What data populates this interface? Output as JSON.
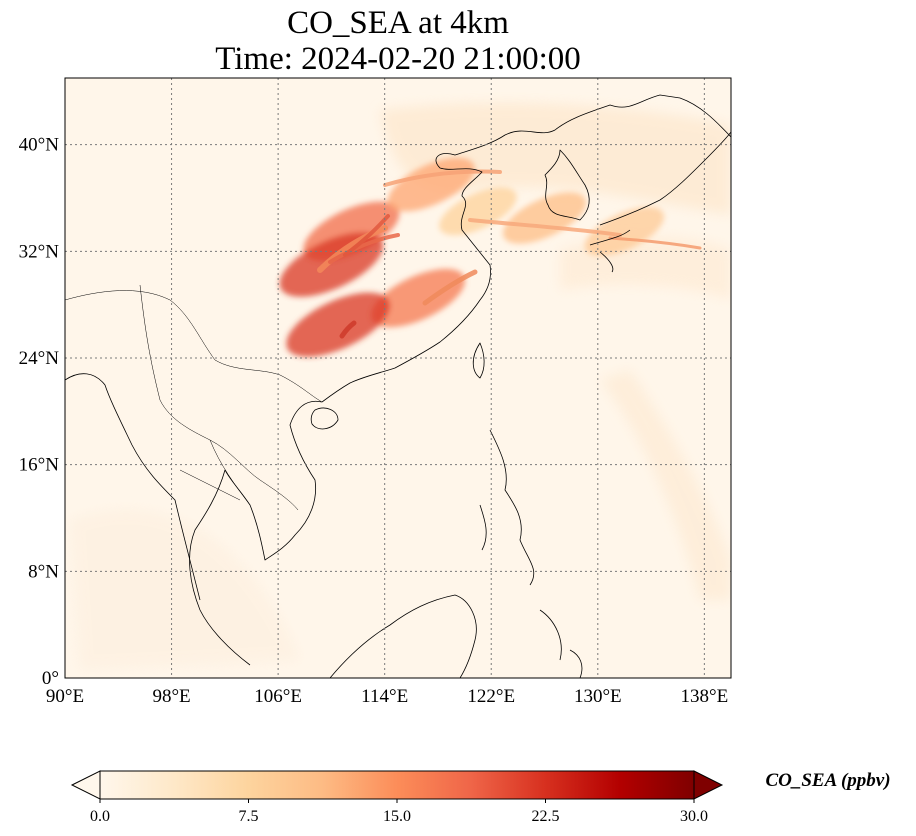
{
  "map": {
    "title_line1": "CO_SEA at 4km",
    "title_line2": "Time: 2024-02-20 21:00:00",
    "lon_range": [
      90,
      140
    ],
    "lat_range": [
      0,
      45
    ],
    "lon_ticks": [
      {
        "value": 90,
        "label": "90°E"
      },
      {
        "value": 98,
        "label": "98°E"
      },
      {
        "value": 106,
        "label": "106°E"
      },
      {
        "value": 114,
        "label": "114°E"
      },
      {
        "value": 122,
        "label": "122°E"
      },
      {
        "value": 130,
        "label": "130°E"
      },
      {
        "value": 138,
        "label": "138°E"
      }
    ],
    "lat_ticks": [
      {
        "value": 0,
        "label": "0°"
      },
      {
        "value": 8,
        "label": "8°N"
      },
      {
        "value": 16,
        "label": "16°N"
      },
      {
        "value": 24,
        "label": "24°N"
      },
      {
        "value": 32,
        "label": "32°N"
      },
      {
        "value": 40,
        "label": "40°N"
      }
    ],
    "gridlines": true,
    "coastline_color": "#000000"
  },
  "colorbar": {
    "label": "CO_SEA (ppbv)",
    "min": 0.0,
    "max": 30.0,
    "extend": "both",
    "ticks": [
      "0.0",
      "7.5",
      "15.0",
      "22.5",
      "30.0"
    ],
    "colormap": "OrRd",
    "colors": [
      "#fff7ec",
      "#fee8c8",
      "#fdd49e",
      "#fdbb84",
      "#fc8d59",
      "#ef6548",
      "#d7301f",
      "#b30000",
      "#7f0000"
    ]
  },
  "field": {
    "units": "ppbv",
    "background_value": 1.5,
    "plumes": [
      {
        "lon": 111.5,
        "lat": 33.5,
        "value": 18
      },
      {
        "lon": 110.0,
        "lat": 31.0,
        "value": 22
      },
      {
        "lon": 116.5,
        "lat": 28.5,
        "value": 17
      },
      {
        "lon": 110.5,
        "lat": 26.5,
        "value": 22
      },
      {
        "lon": 117.5,
        "lat": 37.0,
        "value": 13
      },
      {
        "lon": 126.0,
        "lat": 34.5,
        "value": 11
      },
      {
        "lon": 132.0,
        "lat": 33.5,
        "value": 9
      },
      {
        "lon": 121.0,
        "lat": 35.0,
        "value": 8
      }
    ]
  }
}
